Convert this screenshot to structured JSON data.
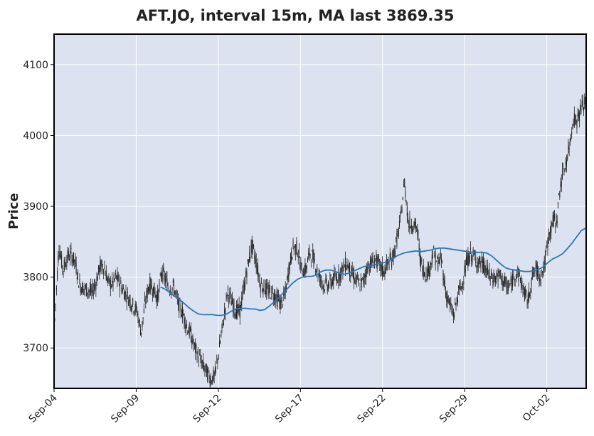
{
  "chart_data": {
    "type": "candlestick",
    "title": "AFT.JO, interval 15m, MA last 3869.35",
    "ylabel": "Price",
    "xlabel": "",
    "ylim": [
      3643,
      4143
    ],
    "y_ticks": [
      3700,
      3800,
      3900,
      4000,
      4100
    ],
    "x_ticks": [
      "Sep-04",
      "Sep-09",
      "Sep-12",
      "Sep-17",
      "Sep-22",
      "Sep-29",
      "Oct-02"
    ],
    "grid": true,
    "colors": {
      "background": "#dce2ef",
      "grid": "#ffffff",
      "candles": "#222222",
      "ma_line": "#2a78b8",
      "frame": "#000000"
    },
    "series": [
      {
        "kind": "price-path",
        "points": [
          [
            0,
            3740
          ],
          [
            1,
            3845
          ],
          [
            2,
            3810
          ],
          [
            3,
            3828
          ],
          [
            4,
            3832
          ],
          [
            5,
            3820
          ],
          [
            6,
            3790
          ],
          [
            7,
            3784
          ],
          [
            8,
            3782
          ],
          [
            9,
            3778
          ],
          [
            10,
            3792
          ],
          [
            11,
            3815
          ],
          [
            12,
            3815
          ],
          [
            13,
            3792
          ],
          [
            14,
            3790
          ],
          [
            15,
            3800
          ],
          [
            16,
            3789
          ],
          [
            17,
            3778
          ],
          [
            18,
            3770
          ],
          [
            19,
            3760
          ],
          [
            20,
            3752
          ],
          [
            21,
            3722
          ],
          [
            22,
            3765
          ],
          [
            23,
            3790
          ],
          [
            24,
            3783
          ],
          [
            25,
            3770
          ],
          [
            26,
            3808
          ],
          [
            27,
            3795
          ],
          [
            28,
            3785
          ],
          [
            29,
            3785
          ],
          [
            30,
            3762
          ],
          [
            31,
            3752
          ],
          [
            32,
            3732
          ],
          [
            33,
            3720
          ],
          [
            34,
            3700
          ],
          [
            35,
            3688
          ],
          [
            36,
            3676
          ],
          [
            37,
            3665
          ],
          [
            38,
            3656
          ],
          [
            39,
            3662
          ],
          [
            40,
            3700
          ],
          [
            41,
            3738
          ],
          [
            42,
            3780
          ],
          [
            43,
            3765
          ],
          [
            44,
            3752
          ],
          [
            45,
            3752
          ],
          [
            46,
            3785
          ],
          [
            47,
            3820
          ],
          [
            48,
            3845
          ],
          [
            49,
            3820
          ],
          [
            50,
            3790
          ],
          [
            51,
            3785
          ],
          [
            52,
            3779
          ],
          [
            53,
            3778
          ],
          [
            54,
            3770
          ],
          [
            55,
            3762
          ],
          [
            56,
            3775
          ],
          [
            57,
            3815
          ],
          [
            58,
            3843
          ],
          [
            59,
            3840
          ],
          [
            60,
            3810
          ],
          [
            61,
            3810
          ],
          [
            62,
            3835
          ],
          [
            63,
            3825
          ],
          [
            64,
            3805
          ],
          [
            65,
            3792
          ],
          [
            66,
            3788
          ],
          [
            67,
            3792
          ],
          [
            68,
            3798
          ],
          [
            69,
            3802
          ],
          [
            70,
            3812
          ],
          [
            71,
            3820
          ],
          [
            72,
            3807
          ],
          [
            73,
            3797
          ],
          [
            74,
            3790
          ],
          [
            75,
            3793
          ],
          [
            76,
            3815
          ],
          [
            77,
            3820
          ],
          [
            78,
            3825
          ],
          [
            79,
            3815
          ],
          [
            80,
            3808
          ],
          [
            81,
            3820
          ],
          [
            82,
            3825
          ],
          [
            83,
            3848
          ],
          [
            84,
            3878
          ],
          [
            85,
            3935
          ],
          [
            86,
            3875
          ],
          [
            87,
            3875
          ],
          [
            88,
            3870
          ],
          [
            89,
            3820
          ],
          [
            90,
            3805
          ],
          [
            91,
            3810
          ],
          [
            92,
            3835
          ],
          [
            93,
            3820
          ],
          [
            94,
            3825
          ],
          [
            95,
            3780
          ],
          [
            96,
            3760
          ],
          [
            97,
            3745
          ],
          [
            98,
            3775
          ],
          [
            99,
            3790
          ],
          [
            100,
            3818
          ],
          [
            101,
            3832
          ],
          [
            102,
            3828
          ],
          [
            103,
            3820
          ],
          [
            104,
            3818
          ],
          [
            105,
            3808
          ],
          [
            106,
            3800
          ],
          [
            107,
            3798
          ],
          [
            108,
            3802
          ],
          [
            109,
            3795
          ],
          [
            110,
            3785
          ],
          [
            111,
            3790
          ],
          [
            112,
            3808
          ],
          [
            113,
            3800
          ],
          [
            114,
            3780
          ],
          [
            115,
            3765
          ],
          [
            116,
            3800
          ],
          [
            117,
            3812
          ],
          [
            118,
            3800
          ],
          [
            119,
            3815
          ],
          [
            120,
            3855
          ],
          [
            121,
            3878
          ],
          [
            122,
            3880
          ],
          [
            123,
            3935
          ],
          [
            124,
            3955
          ],
          [
            125,
            3980
          ],
          [
            126,
            4025
          ],
          [
            127,
            4020
          ],
          [
            128,
            4040
          ],
          [
            129,
            4045
          ]
        ]
      },
      {
        "kind": "moving-average",
        "points": [
          [
            0,
            3786
          ],
          [
            1,
            3783
          ],
          [
            2,
            3778
          ],
          [
            3,
            3773
          ],
          [
            4,
            3768
          ],
          [
            5,
            3763
          ],
          [
            6,
            3757
          ],
          [
            7,
            3752
          ],
          [
            8,
            3748
          ],
          [
            9,
            3747
          ],
          [
            10,
            3747
          ],
          [
            11,
            3747
          ],
          [
            12,
            3746
          ],
          [
            13,
            3746
          ],
          [
            14,
            3748
          ],
          [
            15,
            3752
          ],
          [
            16,
            3755
          ],
          [
            17,
            3756
          ],
          [
            18,
            3756
          ],
          [
            19,
            3755
          ],
          [
            20,
            3755
          ],
          [
            21,
            3753
          ],
          [
            22,
            3754
          ],
          [
            23,
            3759
          ],
          [
            24,
            3765
          ],
          [
            25,
            3771
          ],
          [
            26,
            3778
          ],
          [
            27,
            3785
          ],
          [
            28,
            3792
          ],
          [
            29,
            3797
          ],
          [
            30,
            3800
          ],
          [
            31,
            3801
          ],
          [
            32,
            3801
          ],
          [
            33,
            3803
          ],
          [
            34,
            3808
          ],
          [
            35,
            3810
          ],
          [
            36,
            3810
          ],
          [
            37,
            3808
          ],
          [
            38,
            3805
          ],
          [
            39,
            3804
          ],
          [
            40,
            3806
          ],
          [
            41,
            3809
          ],
          [
            42,
            3812
          ],
          [
            43,
            3815
          ],
          [
            44,
            3816
          ],
          [
            45,
            3817
          ],
          [
            46,
            3819
          ],
          [
            47,
            3820
          ],
          [
            48,
            3822
          ],
          [
            49,
            3826
          ],
          [
            50,
            3830
          ],
          [
            51,
            3833
          ],
          [
            52,
            3835
          ],
          [
            53,
            3836
          ],
          [
            54,
            3837
          ],
          [
            55,
            3836
          ],
          [
            56,
            3837
          ],
          [
            57,
            3838
          ],
          [
            58,
            3840
          ],
          [
            59,
            3841
          ],
          [
            60,
            3841
          ],
          [
            61,
            3840
          ],
          [
            62,
            3839
          ],
          [
            63,
            3838
          ],
          [
            64,
            3837
          ],
          [
            65,
            3836
          ],
          [
            66,
            3835
          ],
          [
            67,
            3835
          ],
          [
            68,
            3835
          ],
          [
            69,
            3834
          ],
          [
            70,
            3830
          ],
          [
            71,
            3824
          ],
          [
            72,
            3818
          ],
          [
            73,
            3813
          ],
          [
            74,
            3811
          ],
          [
            75,
            3810
          ],
          [
            76,
            3809
          ],
          [
            77,
            3808
          ],
          [
            78,
            3808
          ],
          [
            79,
            3809
          ],
          [
            80,
            3811
          ],
          [
            81,
            3815
          ],
          [
            82,
            3821
          ],
          [
            83,
            3826
          ],
          [
            84,
            3829
          ],
          [
            85,
            3833
          ],
          [
            86,
            3840
          ],
          [
            87,
            3848
          ],
          [
            88,
            3857
          ],
          [
            89,
            3866
          ],
          [
            90,
            3869.35
          ]
        ],
        "x_start_fraction": 0.2
      }
    ]
  }
}
